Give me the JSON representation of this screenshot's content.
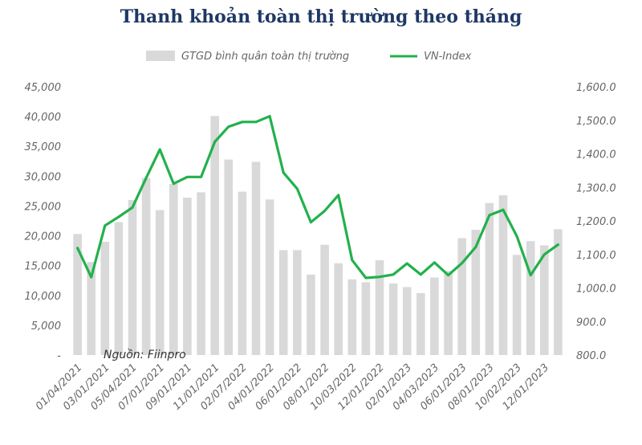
{
  "chart_data": {
    "type": "bar",
    "title": "Thanh khoản toàn thị trường theo tháng",
    "legend": {
      "placement": "top",
      "entries": [
        "GTGD bình quân toàn thị trường",
        "VN-Index"
      ]
    },
    "source_note": "Nguồn: Fiinpro",
    "colors": {
      "bar": "#d9d9d9",
      "line": "#22b14c",
      "title": "#1f3864"
    },
    "left_axis": {
      "ylim": [
        0,
        45000
      ],
      "ticks": [
        "-",
        "5,000",
        "10,000",
        "15,000",
        "20,000",
        "25,000",
        "30,000",
        "35,000",
        "40,000",
        "45,000"
      ]
    },
    "right_axis": {
      "ylim": [
        800,
        1600
      ],
      "ticks": [
        "800.0",
        "900.0",
        "1,000.0",
        "1,100.0",
        "1,200.0",
        "1,300.0",
        "1,400.0",
        "1,500.0",
        "1,600.0"
      ]
    },
    "x_tick_labels": [
      "01/04/2021",
      "03/01/2021",
      "05/04/2021",
      "07/01/2021",
      "09/01/2021",
      "11/01/2021",
      "02/07/2022",
      "04/01/2022",
      "06/01/2022",
      "08/01/2022",
      "10/03/2022",
      "12/01/2022",
      "02/01/2023",
      "04/03/2023",
      "06/01/2023",
      "08/01/2023",
      "10/02/2023",
      "12/01/2023"
    ],
    "series": [
      {
        "name": "GTGD bình quân toàn thị trường",
        "type": "bar",
        "axis": "left",
        "values": [
          20300,
          15600,
          19000,
          22300,
          26000,
          29700,
          24300,
          28700,
          26400,
          27300,
          40100,
          32800,
          27400,
          32400,
          26100,
          17600,
          17600,
          13500,
          18500,
          15400,
          12700,
          12200,
          15900,
          12000,
          11400,
          10400,
          13000,
          14100,
          19600,
          21000,
          25500,
          26800,
          16800,
          19100,
          18400,
          21100
        ]
      },
      {
        "name": "VN-Index",
        "type": "line",
        "axis": "right",
        "values": [
          1119,
          1032,
          1186,
          1212,
          1240,
          1328,
          1413,
          1311,
          1331,
          1331,
          1436,
          1481,
          1495,
          1495,
          1512,
          1344,
          1296,
          1196,
          1230,
          1277,
          1083,
          1030,
          1033,
          1040,
          1073,
          1040,
          1076,
          1038,
          1074,
          1122,
          1217,
          1233,
          1154,
          1038,
          1100,
          1129
        ]
      }
    ]
  }
}
